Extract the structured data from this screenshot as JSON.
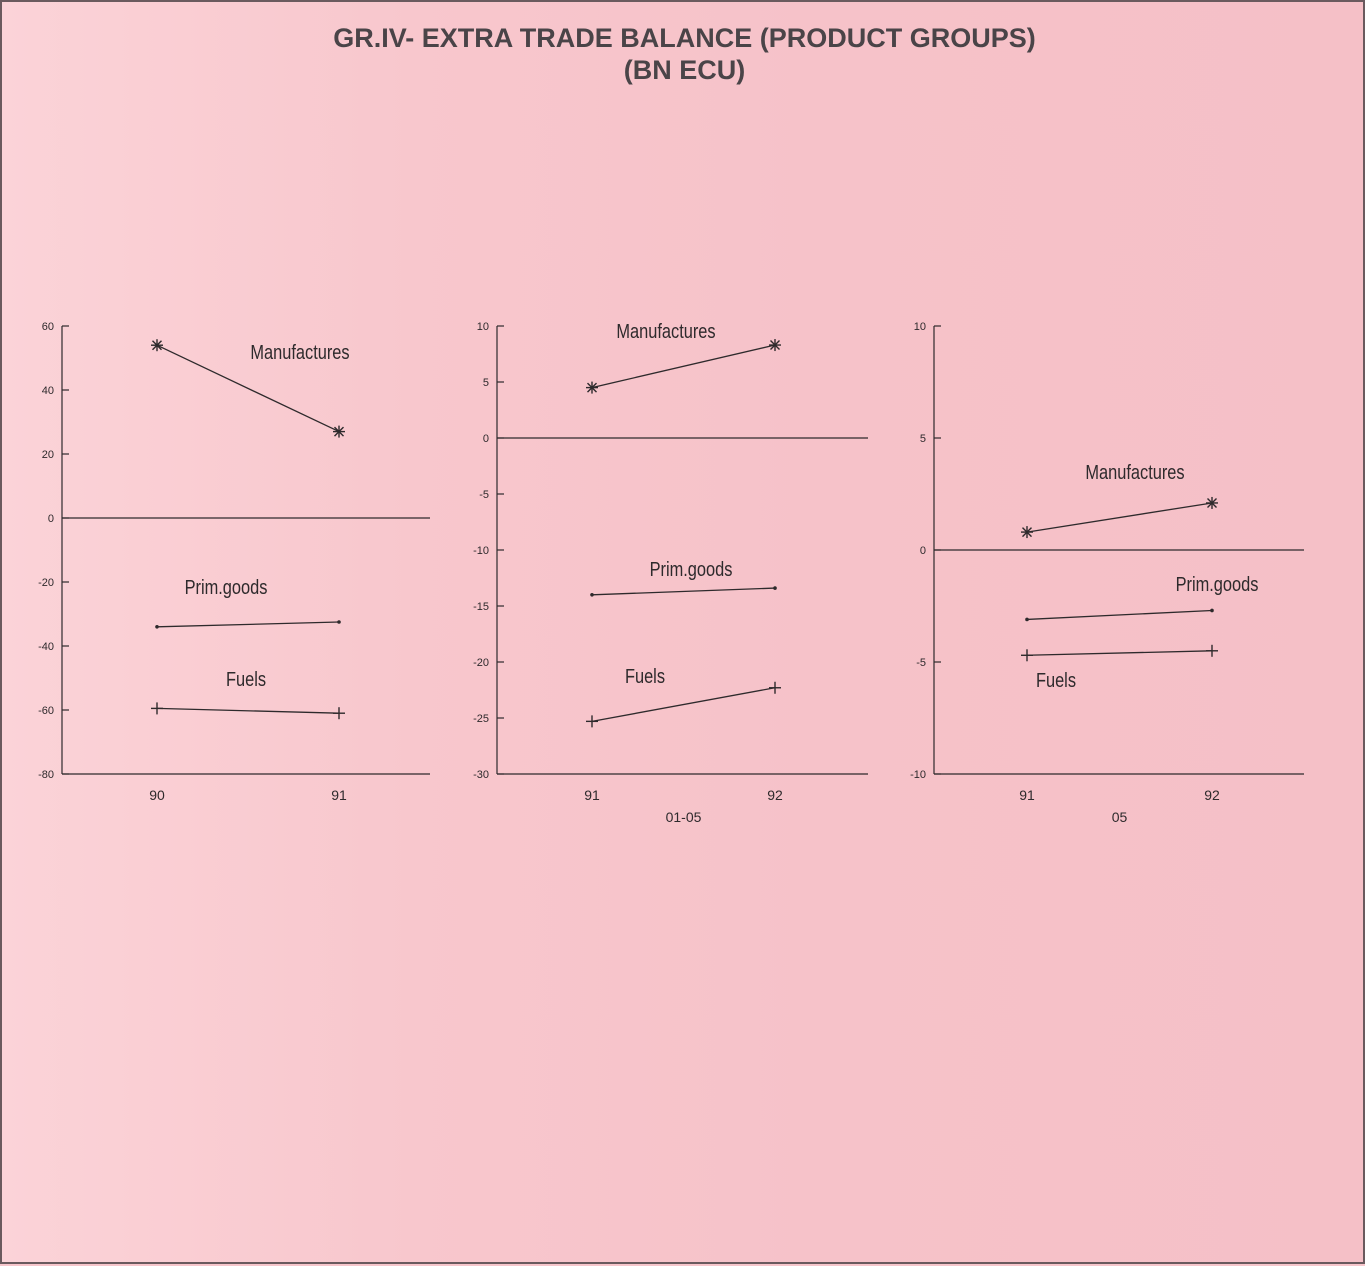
{
  "title": {
    "line1": "GR.IV- EXTRA TRADE BALANCE (PRODUCT GROUPS)",
    "line2": "(BN ECU)"
  },
  "colors": {
    "background": "#f7c6cc",
    "ink": "#2e2a2c",
    "title": "#4a4448"
  },
  "chart_data": [
    {
      "type": "line",
      "title": "",
      "xlabel": "",
      "ylabel": "",
      "categories": [
        "90",
        "91"
      ],
      "ylim": [
        -80,
        60
      ],
      "yticks": [
        "60",
        "40",
        "20",
        "0",
        "-20",
        "-40",
        "-60",
        "-80"
      ],
      "grid": false,
      "series": [
        {
          "name": "Manufactures",
          "marker": "star",
          "values": [
            54,
            27
          ]
        },
        {
          "name": "Prim.goods",
          "marker": "dot",
          "values": [
            -34,
            -32.5
          ]
        },
        {
          "name": "Fuels",
          "marker": "plus",
          "values": [
            -59.5,
            -61
          ]
        }
      ]
    },
    {
      "type": "line",
      "title": "",
      "xlabel": "01-05",
      "ylabel": "",
      "categories": [
        "91",
        "92"
      ],
      "ylim": [
        -30,
        10
      ],
      "yticks": [
        "10",
        "5",
        "0",
        "-5",
        "-10",
        "-15",
        "-20",
        "-25",
        "-30"
      ],
      "grid": false,
      "series": [
        {
          "name": "Manufactures",
          "marker": "star",
          "values": [
            4.5,
            8.3
          ]
        },
        {
          "name": "Prim.goods",
          "marker": "dot",
          "values": [
            -14,
            -13.4
          ]
        },
        {
          "name": "Fuels",
          "marker": "plus",
          "values": [
            -25.3,
            -22.3
          ]
        }
      ]
    },
    {
      "type": "line",
      "title": "",
      "xlabel": "05",
      "ylabel": "",
      "categories": [
        "91",
        "92"
      ],
      "ylim": [
        -10,
        10
      ],
      "yticks": [
        "10",
        "5",
        "0",
        "-5",
        "-10"
      ],
      "grid": false,
      "series": [
        {
          "name": "Manufactures",
          "marker": "star",
          "values": [
            0.8,
            2.1
          ]
        },
        {
          "name": "Prim.goods",
          "marker": "dot",
          "values": [
            -3.1,
            -2.7
          ]
        },
        {
          "name": "Fuels",
          "marker": "plus",
          "values": [
            -4.7,
            -4.5
          ]
        }
      ]
    }
  ]
}
